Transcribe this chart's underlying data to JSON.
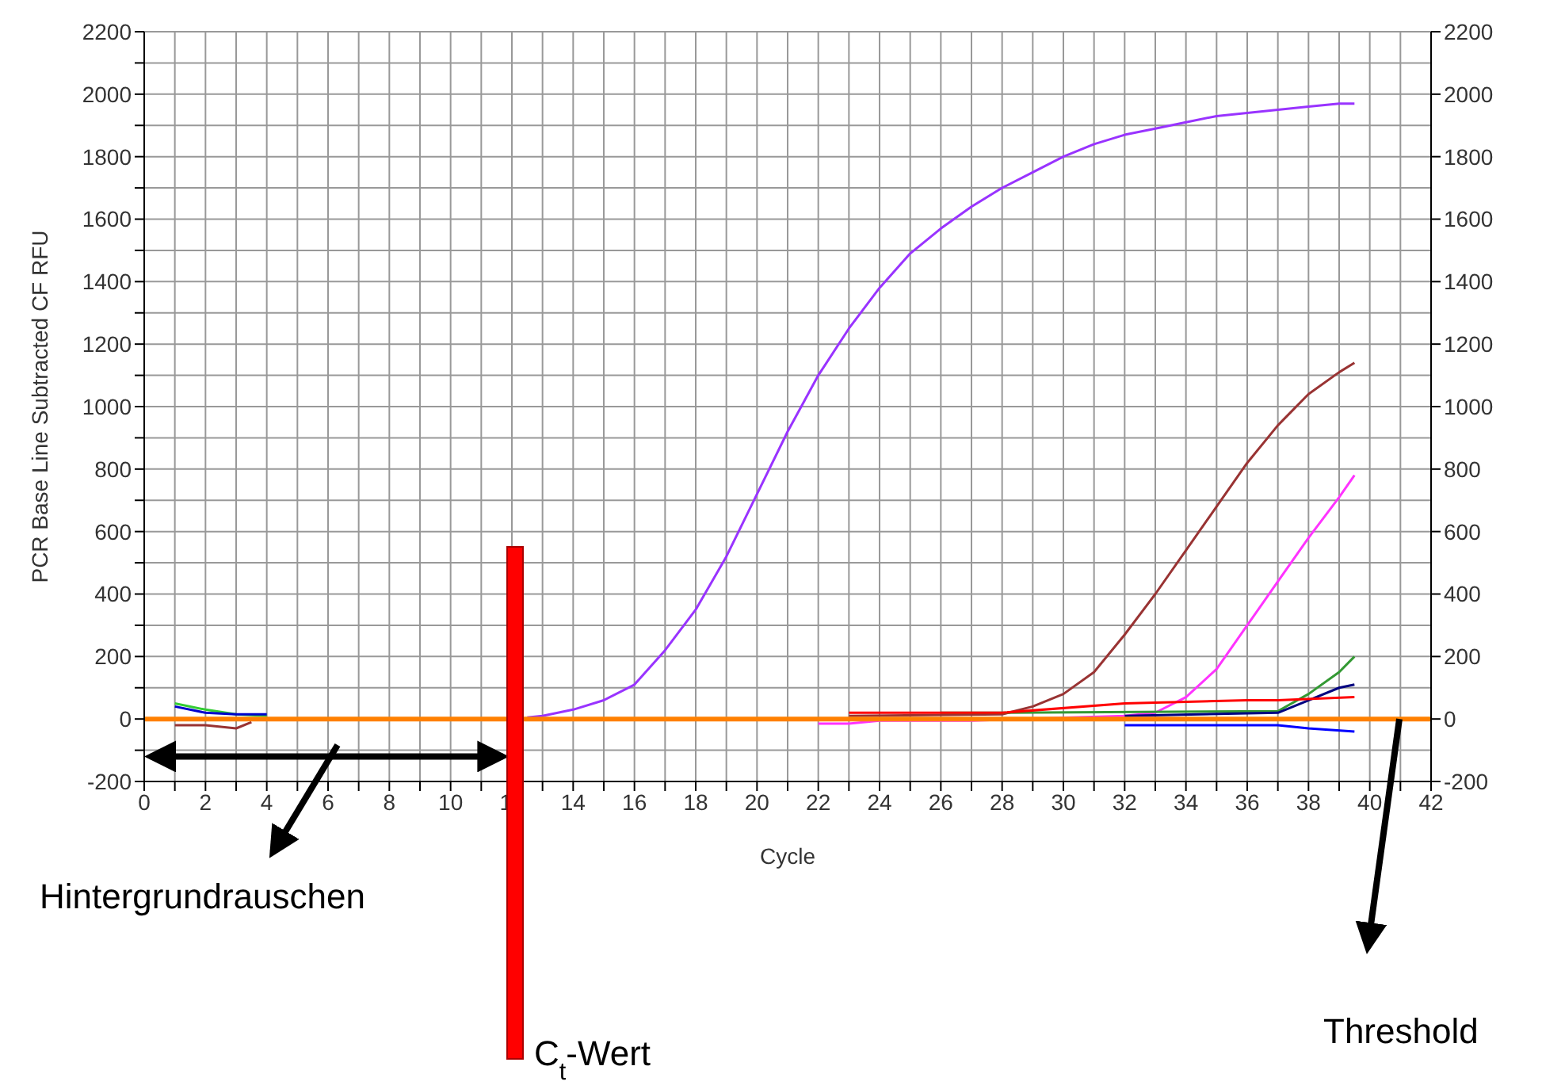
{
  "chart_data": {
    "type": "line",
    "xlabel": "Cycle",
    "ylabel": "PCR Base Line Subtracted CF RFU",
    "xlim": [
      0,
      42
    ],
    "xticks": [
      0,
      {
        "value": 1,
        "label": null
      },
      2,
      {
        "value": 3,
        "label": null
      },
      4,
      {
        "value": 5,
        "label": null
      },
      6,
      {
        "value": 7,
        "label": null
      },
      8,
      {
        "value": 9,
        "label": null
      },
      10,
      {
        "value": 11,
        "label": null
      },
      12,
      {
        "value": 13,
        "label": null
      },
      14,
      {
        "value": 15,
        "label": null
      },
      16,
      {
        "value": 17,
        "label": null
      },
      18,
      {
        "value": 19,
        "label": null
      },
      20,
      {
        "value": 21,
        "label": null
      },
      22,
      {
        "value": 23,
        "label": null
      },
      24,
      {
        "value": 25,
        "label": null
      },
      26,
      {
        "value": 27,
        "label": null
      },
      28,
      {
        "value": 29,
        "label": null
      },
      30,
      {
        "value": 31,
        "label": null
      },
      32,
      {
        "value": 33,
        "label": null
      },
      34,
      {
        "value": 35,
        "label": null
      },
      36,
      {
        "value": 37,
        "label": null
      },
      38,
      {
        "value": 39,
        "label": null
      },
      40,
      {
        "value": 41,
        "label": null
      },
      42
    ],
    "ylim": [
      -200,
      2200
    ],
    "yticks": [
      -200,
      {
        "value": -100,
        "label": null
      },
      0,
      {
        "value": 100,
        "label": null
      },
      200,
      {
        "value": 300,
        "label": null
      },
      400,
      {
        "value": 500,
        "label": null
      },
      600,
      {
        "value": 700,
        "label": null
      },
      800,
      {
        "value": 900,
        "label": null
      },
      1000,
      {
        "value": 1100,
        "label": null
      },
      1200,
      {
        "value": 1300,
        "label": null
      },
      1400,
      {
        "value": 1500,
        "label": null
      },
      1600,
      {
        "value": 1700,
        "label": null
      },
      1800,
      {
        "value": 1900,
        "label": null
      },
      2000,
      {
        "value": 2100,
        "label": null
      },
      2200
    ],
    "y2lim": [
      -200,
      2200
    ],
    "y2ticks": [
      -200,
      0,
      200,
      400,
      600,
      800,
      1000,
      1200,
      1400,
      1600,
      1800,
      2000,
      2200
    ],
    "grid": true,
    "marker": "none",
    "line_style": "solid",
    "series": [
      {
        "color": "#9933ff",
        "x": [
          12.5,
          13,
          14,
          15,
          16,
          17,
          18,
          19,
          20,
          21,
          22,
          23,
          24,
          25,
          26,
          27,
          28,
          29,
          30,
          31,
          32,
          33,
          34,
          35,
          36,
          37,
          38,
          39,
          39.5
        ],
        "values": [
          5,
          10,
          30,
          60,
          110,
          220,
          350,
          520,
          720,
          920,
          1100,
          1250,
          1380,
          1490,
          1570,
          1640,
          1700,
          1750,
          1800,
          1840,
          1870,
          1890,
          1910,
          1930,
          1940,
          1950,
          1960,
          1970,
          1970
        ]
      },
      {
        "color": "#993333",
        "x": [
          23,
          28,
          29,
          30,
          31,
          32,
          33,
          34,
          35,
          36,
          37,
          38,
          39,
          39.5
        ],
        "values": [
          10,
          15,
          40,
          80,
          150,
          270,
          400,
          540,
          680,
          820,
          940,
          1040,
          1110,
          1140
        ]
      },
      {
        "color": "#ff33ff",
        "x": [
          22,
          23,
          24,
          27,
          32,
          33,
          34,
          35,
          36,
          37,
          38,
          39,
          39.5
        ],
        "values": [
          -15,
          -15,
          -5,
          -5,
          10,
          20,
          70,
          160,
          300,
          440,
          580,
          710,
          780
        ]
      },
      {
        "color": "#339933",
        "x": [
          26,
          28,
          37,
          38,
          39,
          39.5
        ],
        "values": [
          20,
          20,
          25,
          80,
          150,
          200
        ]
      },
      {
        "color": "#000080",
        "x": [
          32,
          37,
          38,
          39,
          39.5
        ],
        "values": [
          10,
          20,
          60,
          100,
          110
        ]
      },
      {
        "color": "#ff0000",
        "x": [
          23,
          28,
          32,
          36,
          37,
          39.5
        ],
        "values": [
          20,
          20,
          50,
          60,
          60,
          70
        ]
      },
      {
        "color": "#0000ff",
        "x": [
          32,
          37,
          38,
          39.5
        ],
        "values": [
          -20,
          -20,
          -30,
          -40
        ]
      },
      {
        "color": "#33cc33",
        "x": [
          1,
          2,
          3,
          4
        ],
        "values": [
          50,
          30,
          15,
          10
        ]
      },
      {
        "color": "#0000cc",
        "x": [
          1,
          2,
          3,
          4
        ],
        "values": [
          40,
          20,
          15,
          15
        ]
      },
      {
        "color": "#993333",
        "x": [
          1,
          2,
          3,
          3.5
        ],
        "values": [
          -20,
          -20,
          -30,
          -10
        ]
      }
    ],
    "ref_lines": [
      {
        "axis": "y",
        "value": 0,
        "color": "#ff8000"
      }
    ],
    "annotations": [
      "Hintergrundrauschen",
      "C$_{t}$-Wert",
      "Threshold"
    ]
  }
}
